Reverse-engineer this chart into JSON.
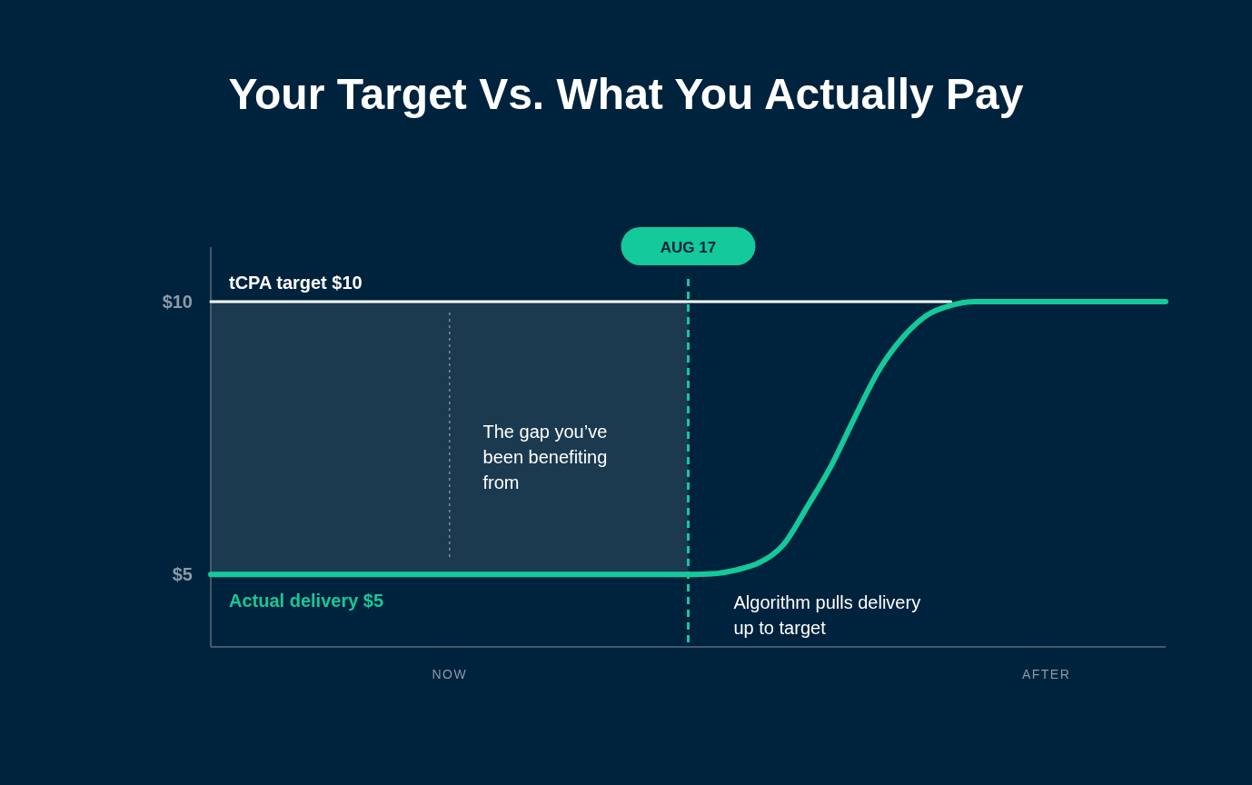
{
  "chart_data": {
    "type": "line",
    "title": "Your Target Vs. What You Actually Pay",
    "categories": [
      null,
      null,
      null,
      null,
      null,
      null,
      null,
      null,
      null,
      null,
      "NOW",
      null,
      null,
      null,
      null,
      null,
      null,
      null,
      null,
      null,
      null,
      null,
      null,
      null,
      null,
      null,
      null,
      null,
      null,
      null,
      null,
      null,
      null,
      null,
      null,
      "AFTER",
      null,
      null,
      null,
      null,
      null
    ],
    "ylim": [
      3.67,
      11
    ],
    "yticks": [
      {
        "value": 5,
        "label": "$5"
      },
      {
        "value": 10,
        "label": "$10"
      }
    ],
    "grid": false,
    "legend": false,
    "marker": "none",
    "line_style": "solid",
    "series": [
      {
        "name": "tCPA target $10",
        "color": "#ffffff",
        "values": [
          10,
          10,
          10,
          10,
          10,
          10,
          10,
          10,
          10,
          10,
          10,
          10,
          10,
          10,
          10,
          10,
          10,
          10,
          10,
          10,
          10,
          10,
          10,
          10,
          10,
          10,
          10,
          10,
          10,
          10,
          10,
          10,
          null,
          null,
          null,
          null,
          null,
          null,
          null,
          null,
          null
        ]
      },
      {
        "name": "Actual delivery $5",
        "color": "#14c99a",
        "values": [
          5,
          5,
          5,
          5,
          5,
          5,
          5,
          5,
          5,
          5,
          5,
          5,
          5,
          5,
          5,
          5,
          5,
          5,
          5,
          5,
          5,
          5.01,
          5.08,
          5.22,
          5.55,
          6.25,
          7.0,
          7.9,
          8.75,
          9.35,
          9.75,
          9.93,
          10,
          10,
          10,
          10,
          10,
          10,
          10,
          10,
          10
        ]
      }
    ],
    "ref_lines": [
      {
        "axis": "x",
        "value": "NOW",
        "label": null,
        "color": "#7d8b99",
        "line_style": "dotted"
      }
    ],
    "annotations": [
      "The gap you’ve been benefiting from",
      "Algorithm pulls delivery up to target",
      "AUG 17"
    ]
  }
}
